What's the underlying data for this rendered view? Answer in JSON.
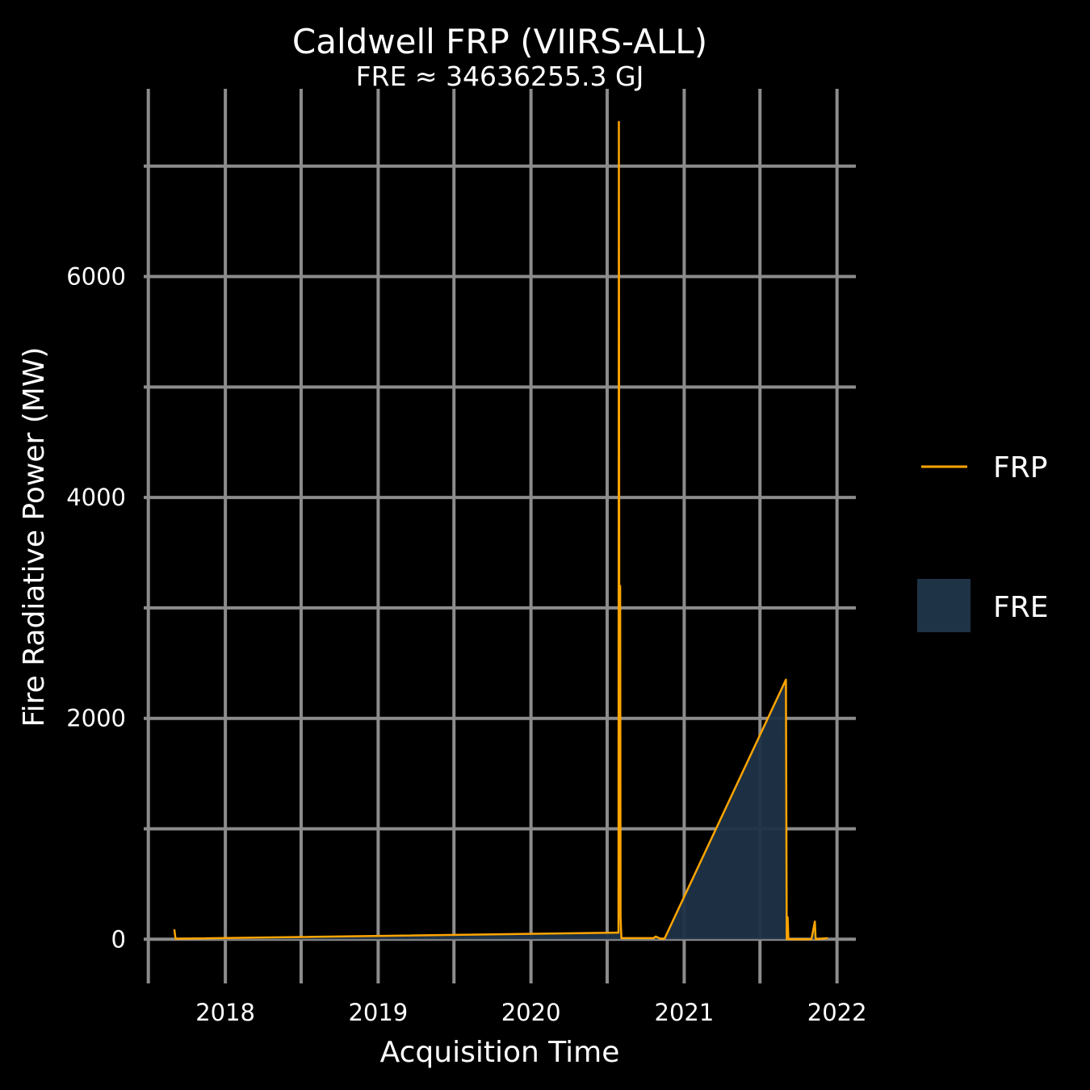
{
  "chart_data": {
    "type": "line",
    "title": "Caldwell FRP (VIIRS-ALL)",
    "subtitle": "FRE ≈ 34636255.3 GJ",
    "xlabel": "Acquisition Time",
    "ylabel": "Fire Radiative Power (MW)",
    "x_ticks": [
      "2018",
      "2019",
      "2020",
      "2021",
      "2022"
    ],
    "x_minor_ticks": [
      "2017-07-01",
      "2018-07-01",
      "2019-07-01",
      "2020-07-01",
      "2021-07-01"
    ],
    "xlim": [
      "2017-06-20",
      "2022-02-15"
    ],
    "y_ticks": [
      0,
      2000,
      4000,
      6000
    ],
    "y_minor_ticks": [
      1000,
      3000,
      5000,
      7000
    ],
    "ylim": [
      -400,
      7700
    ],
    "grid": true,
    "legend_position": "right",
    "colors": {
      "background": "#000000",
      "grid": "#8c8c8c",
      "frp_line": "#FFA500",
      "fre_fill": "#1f3347"
    },
    "series": [
      {
        "name": "FRP",
        "kind": "line",
        "points": [
          [
            "2017-09-01",
            90
          ],
          [
            "2017-09-04",
            5
          ],
          [
            "2020-07-28",
            60
          ],
          [
            "2020-07-29",
            7400
          ],
          [
            "2020-07-30",
            2700
          ],
          [
            "2020-07-31",
            800
          ],
          [
            "2020-08-01",
            3200
          ],
          [
            "2020-08-02",
            200
          ],
          [
            "2020-08-04",
            10
          ],
          [
            "2020-10-20",
            10
          ],
          [
            "2020-10-25",
            25
          ],
          [
            "2020-11-05",
            5
          ],
          [
            "2020-11-15",
            5
          ],
          [
            "2021-09-01",
            2350
          ],
          [
            "2021-09-03",
            0
          ],
          [
            "2021-09-05",
            200
          ],
          [
            "2021-09-07",
            0
          ],
          [
            "2021-11-01",
            0
          ],
          [
            "2021-11-09",
            160
          ],
          [
            "2021-11-11",
            0
          ],
          [
            "2021-12-10",
            10
          ]
        ]
      },
      {
        "name": "FRE",
        "kind": "area",
        "points": [
          [
            "2017-09-01",
            90
          ],
          [
            "2017-09-04",
            5
          ],
          [
            "2020-07-28",
            60
          ],
          [
            "2020-07-29",
            7400
          ],
          [
            "2020-07-30",
            2700
          ],
          [
            "2020-07-31",
            800
          ],
          [
            "2020-08-01",
            3200
          ],
          [
            "2020-08-02",
            200
          ],
          [
            "2020-08-04",
            10
          ],
          [
            "2020-10-20",
            10
          ],
          [
            "2020-10-25",
            25
          ],
          [
            "2020-11-05",
            5
          ],
          [
            "2020-11-15",
            5
          ],
          [
            "2021-09-01",
            2350
          ],
          [
            "2021-09-03",
            0
          ],
          [
            "2021-09-05",
            200
          ],
          [
            "2021-09-07",
            0
          ],
          [
            "2021-11-01",
            0
          ],
          [
            "2021-11-09",
            160
          ],
          [
            "2021-11-11",
            0
          ],
          [
            "2021-12-10",
            10
          ]
        ]
      }
    ]
  }
}
